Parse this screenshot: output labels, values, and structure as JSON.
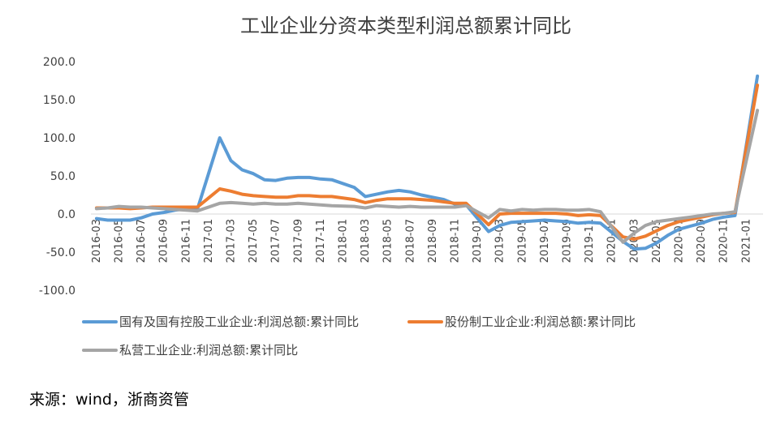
{
  "chart_data": {
    "type": "line",
    "title": "工业企业分资本类型利润总额累计同比",
    "xlabel": "",
    "ylabel": "",
    "ylim": [
      -100,
      200
    ],
    "yticks": [
      "200.0",
      "150.0",
      "100.0",
      "50.0",
      "0.0",
      "-50.0",
      "-100.0"
    ],
    "grid": false,
    "legend_position": "bottom",
    "x": [
      "2016-03",
      "2016-04",
      "2016-05",
      "2016-06",
      "2016-07",
      "2016-08",
      "2016-09",
      "2016-10",
      "2016-11",
      "2016-12",
      "2017-01",
      "2017-02",
      "2017-03",
      "2017-04",
      "2017-05",
      "2017-06",
      "2017-07",
      "2017-08",
      "2017-09",
      "2017-10",
      "2017-11",
      "2017-12",
      "2018-01",
      "2018-02",
      "2018-03",
      "2018-04",
      "2018-05",
      "2018-06",
      "2018-07",
      "2018-08",
      "2018-09",
      "2018-10",
      "2018-11",
      "2018-12",
      "2019-01",
      "2019-02",
      "2019-03",
      "2019-04",
      "2019-05",
      "2019-06",
      "2019-07",
      "2019-08",
      "2019-09",
      "2019-10",
      "2019-11",
      "2019-12",
      "2020-01",
      "2020-02",
      "2020-03",
      "2020-04",
      "2020-05",
      "2020-06",
      "2020-07",
      "2020-08",
      "2020-09",
      "2020-10",
      "2020-11",
      "2020-12",
      "2021-01",
      "2021-02"
    ],
    "xtick_labels": [
      "2016-03",
      "2016-05",
      "2016-07",
      "2016-09",
      "2016-11",
      "2017-01",
      "2017-03",
      "2017-05",
      "2017-07",
      "2017-09",
      "2017-11",
      "2018-01",
      "2018-03",
      "2018-05",
      "2018-07",
      "2018-09",
      "2018-11",
      "2019-01",
      "2019-03",
      "2019-05",
      "2019-07",
      "2019-09",
      "2019-11",
      "2020-01",
      "2020-03",
      "2020-05",
      "2020-07",
      "2020-09",
      "2020-11",
      "2021-01"
    ],
    "series": [
      {
        "name": "国有及国有控股工业企业:利润总额:累计同比",
        "color": "#5b9bd5",
        "values": [
          -6,
          -8,
          -8,
          -8,
          -5,
          0,
          2,
          5,
          7,
          6,
          null,
          100,
          70,
          58,
          53,
          45,
          44,
          47,
          48,
          48,
          46,
          45,
          null,
          35,
          23,
          26,
          29,
          31,
          29,
          25,
          22,
          19,
          13,
          12,
          null,
          -23,
          -15,
          -11,
          -10,
          -9,
          -8,
          -9,
          -10,
          -12,
          -11,
          -12,
          null,
          -36,
          -46,
          -45,
          -38,
          -28,
          -20,
          -16,
          -12,
          -7,
          -4,
          -2,
          null,
          181
        ]
      },
      {
        "name": "股份制工业企业:利润总额:累计同比",
        "color": "#ed7d31",
        "values": [
          8,
          8,
          8,
          7,
          8,
          9,
          9,
          9,
          9,
          9,
          null,
          33,
          30,
          26,
          24,
          23,
          22,
          22,
          24,
          24,
          23,
          23,
          null,
          19,
          15,
          18,
          20,
          20,
          20,
          19,
          18,
          16,
          14,
          14,
          null,
          -14,
          0,
          1,
          1,
          1,
          1,
          1,
          0,
          -2,
          -1,
          -2,
          null,
          -30,
          -33,
          -29,
          -22,
          -15,
          -10,
          -7,
          -4,
          -1,
          1,
          2,
          null,
          169
        ]
      },
      {
        "name": "私营工业企业:利润总额:累计同比",
        "color": "#a5a5a5",
        "values": [
          7,
          8,
          10,
          9,
          9,
          8,
          7,
          6,
          5,
          4,
          null,
          14,
          15,
          14,
          13,
          14,
          13,
          13,
          14,
          13,
          12,
          11,
          null,
          10,
          8,
          11,
          10,
          9,
          10,
          9,
          9,
          9,
          9,
          11,
          null,
          -5,
          6,
          4,
          6,
          5,
          6,
          6,
          5,
          5,
          6,
          3,
          null,
          -37,
          -25,
          -15,
          -10,
          -8,
          -6,
          -4,
          -2,
          0,
          1,
          3,
          null,
          136
        ]
      }
    ]
  },
  "legend": {
    "items": [
      "国有及国有控股工业企业:利润总额:累计同比",
      "股份制工业企业:利润总额:累计同比",
      "私营工业企业:利润总额:累计同比"
    ]
  },
  "source_text": "来源：wind，浙商资管"
}
